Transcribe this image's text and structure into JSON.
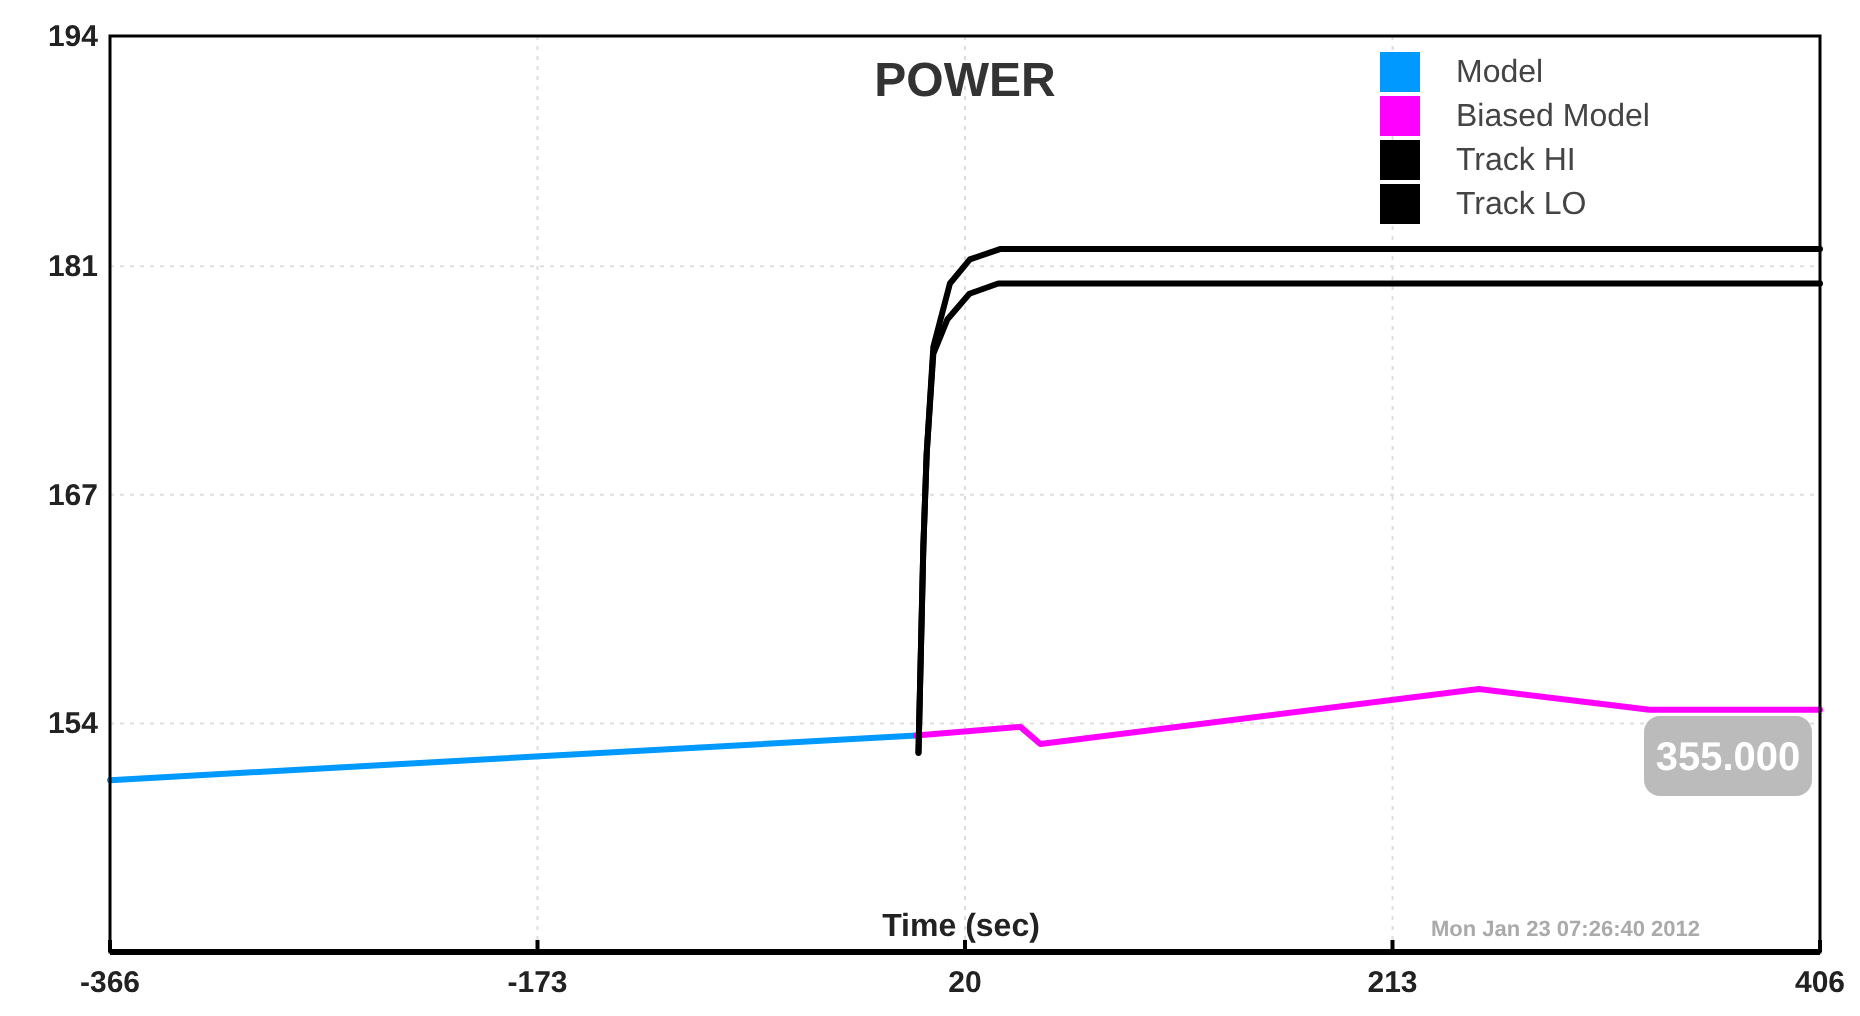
{
  "chart_data": {
    "type": "line",
    "title": "POWER",
    "xlabel": "Time (sec)",
    "xlim": [
      -366,
      406
    ],
    "xticks": [
      -366,
      -173,
      20,
      213,
      406
    ],
    "ylim": [
      140.7,
      194
    ],
    "yticks": [
      {
        "value": 154,
        "label": "154"
      },
      {
        "value": 167.3,
        "label": "167"
      },
      {
        "value": 180.6,
        "label": "181"
      },
      {
        "value": 194,
        "label": "194"
      }
    ],
    "grid": true,
    "legend": "top right",
    "marker": "none",
    "line_style": "solid",
    "series": [
      {
        "name": "Model",
        "color": "#0099ff",
        "x": [
          -366,
          -2
        ],
        "values": [
          150.7,
          153.3
        ]
      },
      {
        "name": "Biased Model",
        "color": "#ff00ff",
        "x": [
          -2,
          45,
          54,
          252,
          329,
          406
        ],
        "values": [
          153.3,
          153.8,
          152.8,
          156.0,
          154.8,
          154.8
        ]
      },
      {
        "name": "Track HI",
        "color": "#000000",
        "x": [
          -1,
          1.2,
          2.7,
          5.7,
          13.2,
          22.2,
          35.8,
          406
        ],
        "values": [
          152.3,
          164.3,
          169.7,
          175.9,
          179.6,
          181.0,
          181.6,
          181.6
        ]
      },
      {
        "name": "Track LO",
        "color": "#000000",
        "x": [
          -1,
          1.2,
          2.7,
          5.7,
          12,
          22,
          35,
          406
        ],
        "values": [
          152.3,
          164.3,
          169.7,
          175.5,
          177.5,
          179.0,
          179.6,
          179.6
        ]
      }
    ],
    "annotations": [
      "Mon Jan 23 07:26:40 2012",
      "355.000"
    ]
  }
}
